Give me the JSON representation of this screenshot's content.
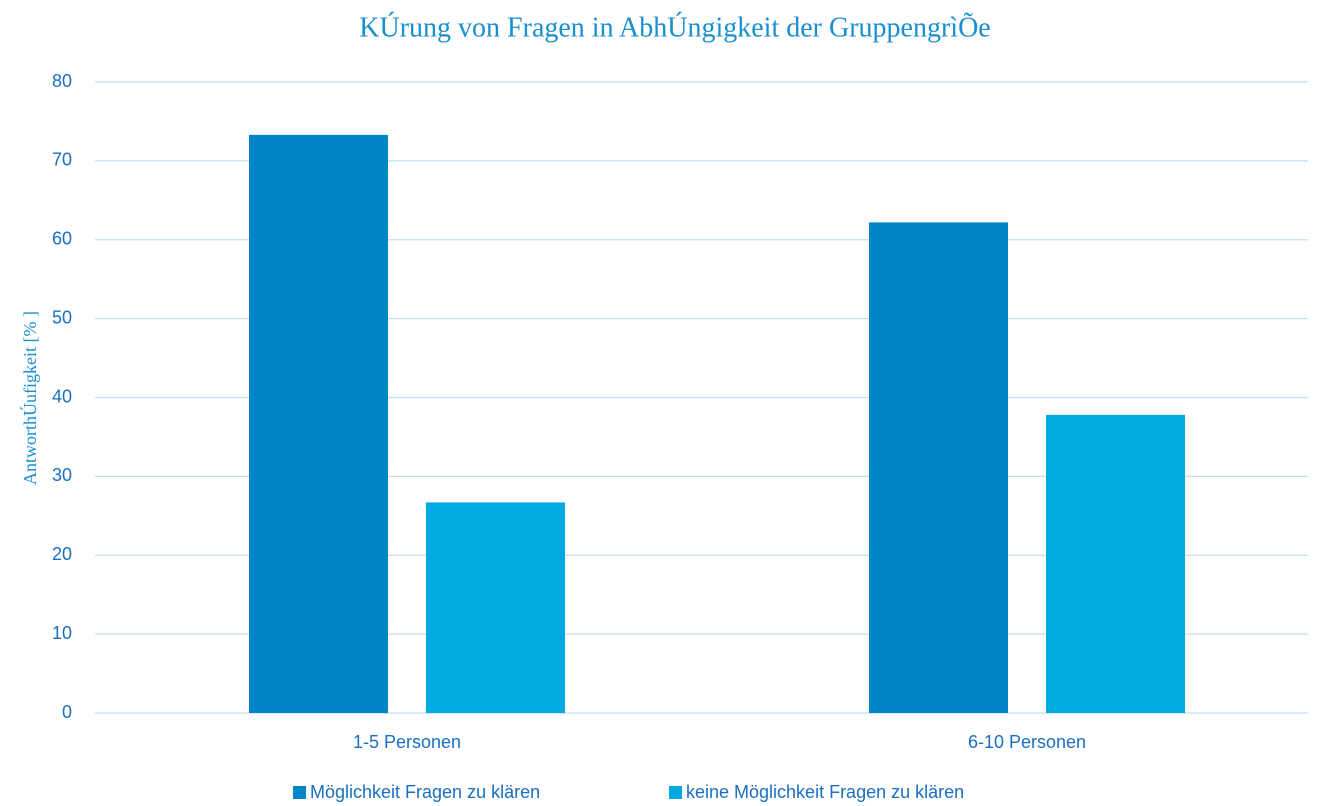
{
  "chart_data": {
    "type": "bar",
    "title": "KÚrung von Fragen in AbhÚngigkeit der GruppengrìÕe",
    "y_label": "AntworthÚufigkeit [% ]",
    "categories": [
      "1-5 Personen",
      "6-10 Personen"
    ],
    "series": [
      {
        "name": "Möglichkeit Fragen zu klären",
        "color": "#0085c8",
        "values": [
          73.3,
          62.2
        ]
      },
      {
        "name": "keine Möglichkeit Fragen zu klären",
        "color": "#00a9e0",
        "values": [
          26.7,
          37.8
        ]
      }
    ],
    "ylim": [
      0,
      80
    ],
    "yticks": [
      0,
      10,
      20,
      30,
      40,
      50,
      60,
      70,
      80
    ],
    "grid": true,
    "legend": "bottom"
  }
}
